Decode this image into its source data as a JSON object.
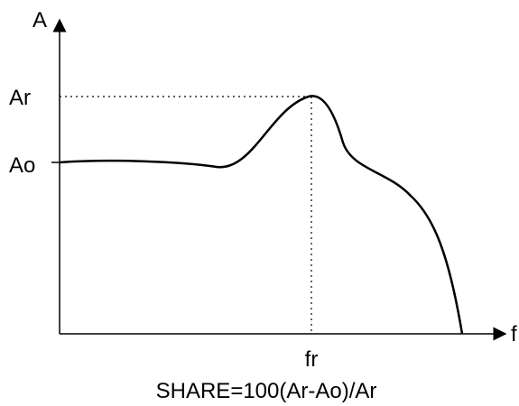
{
  "diagram": {
    "y_axis_label": "A",
    "x_axis_label": "f",
    "peak_amplitude_label": "Ar",
    "base_amplitude_label": "Ao",
    "resonance_frequency_label": "fr",
    "formula": "SHARE=100(Ar-Ao)/Ar",
    "colors": {
      "curve": "#000000",
      "axes": "#000000",
      "guides": "#000000"
    }
  }
}
